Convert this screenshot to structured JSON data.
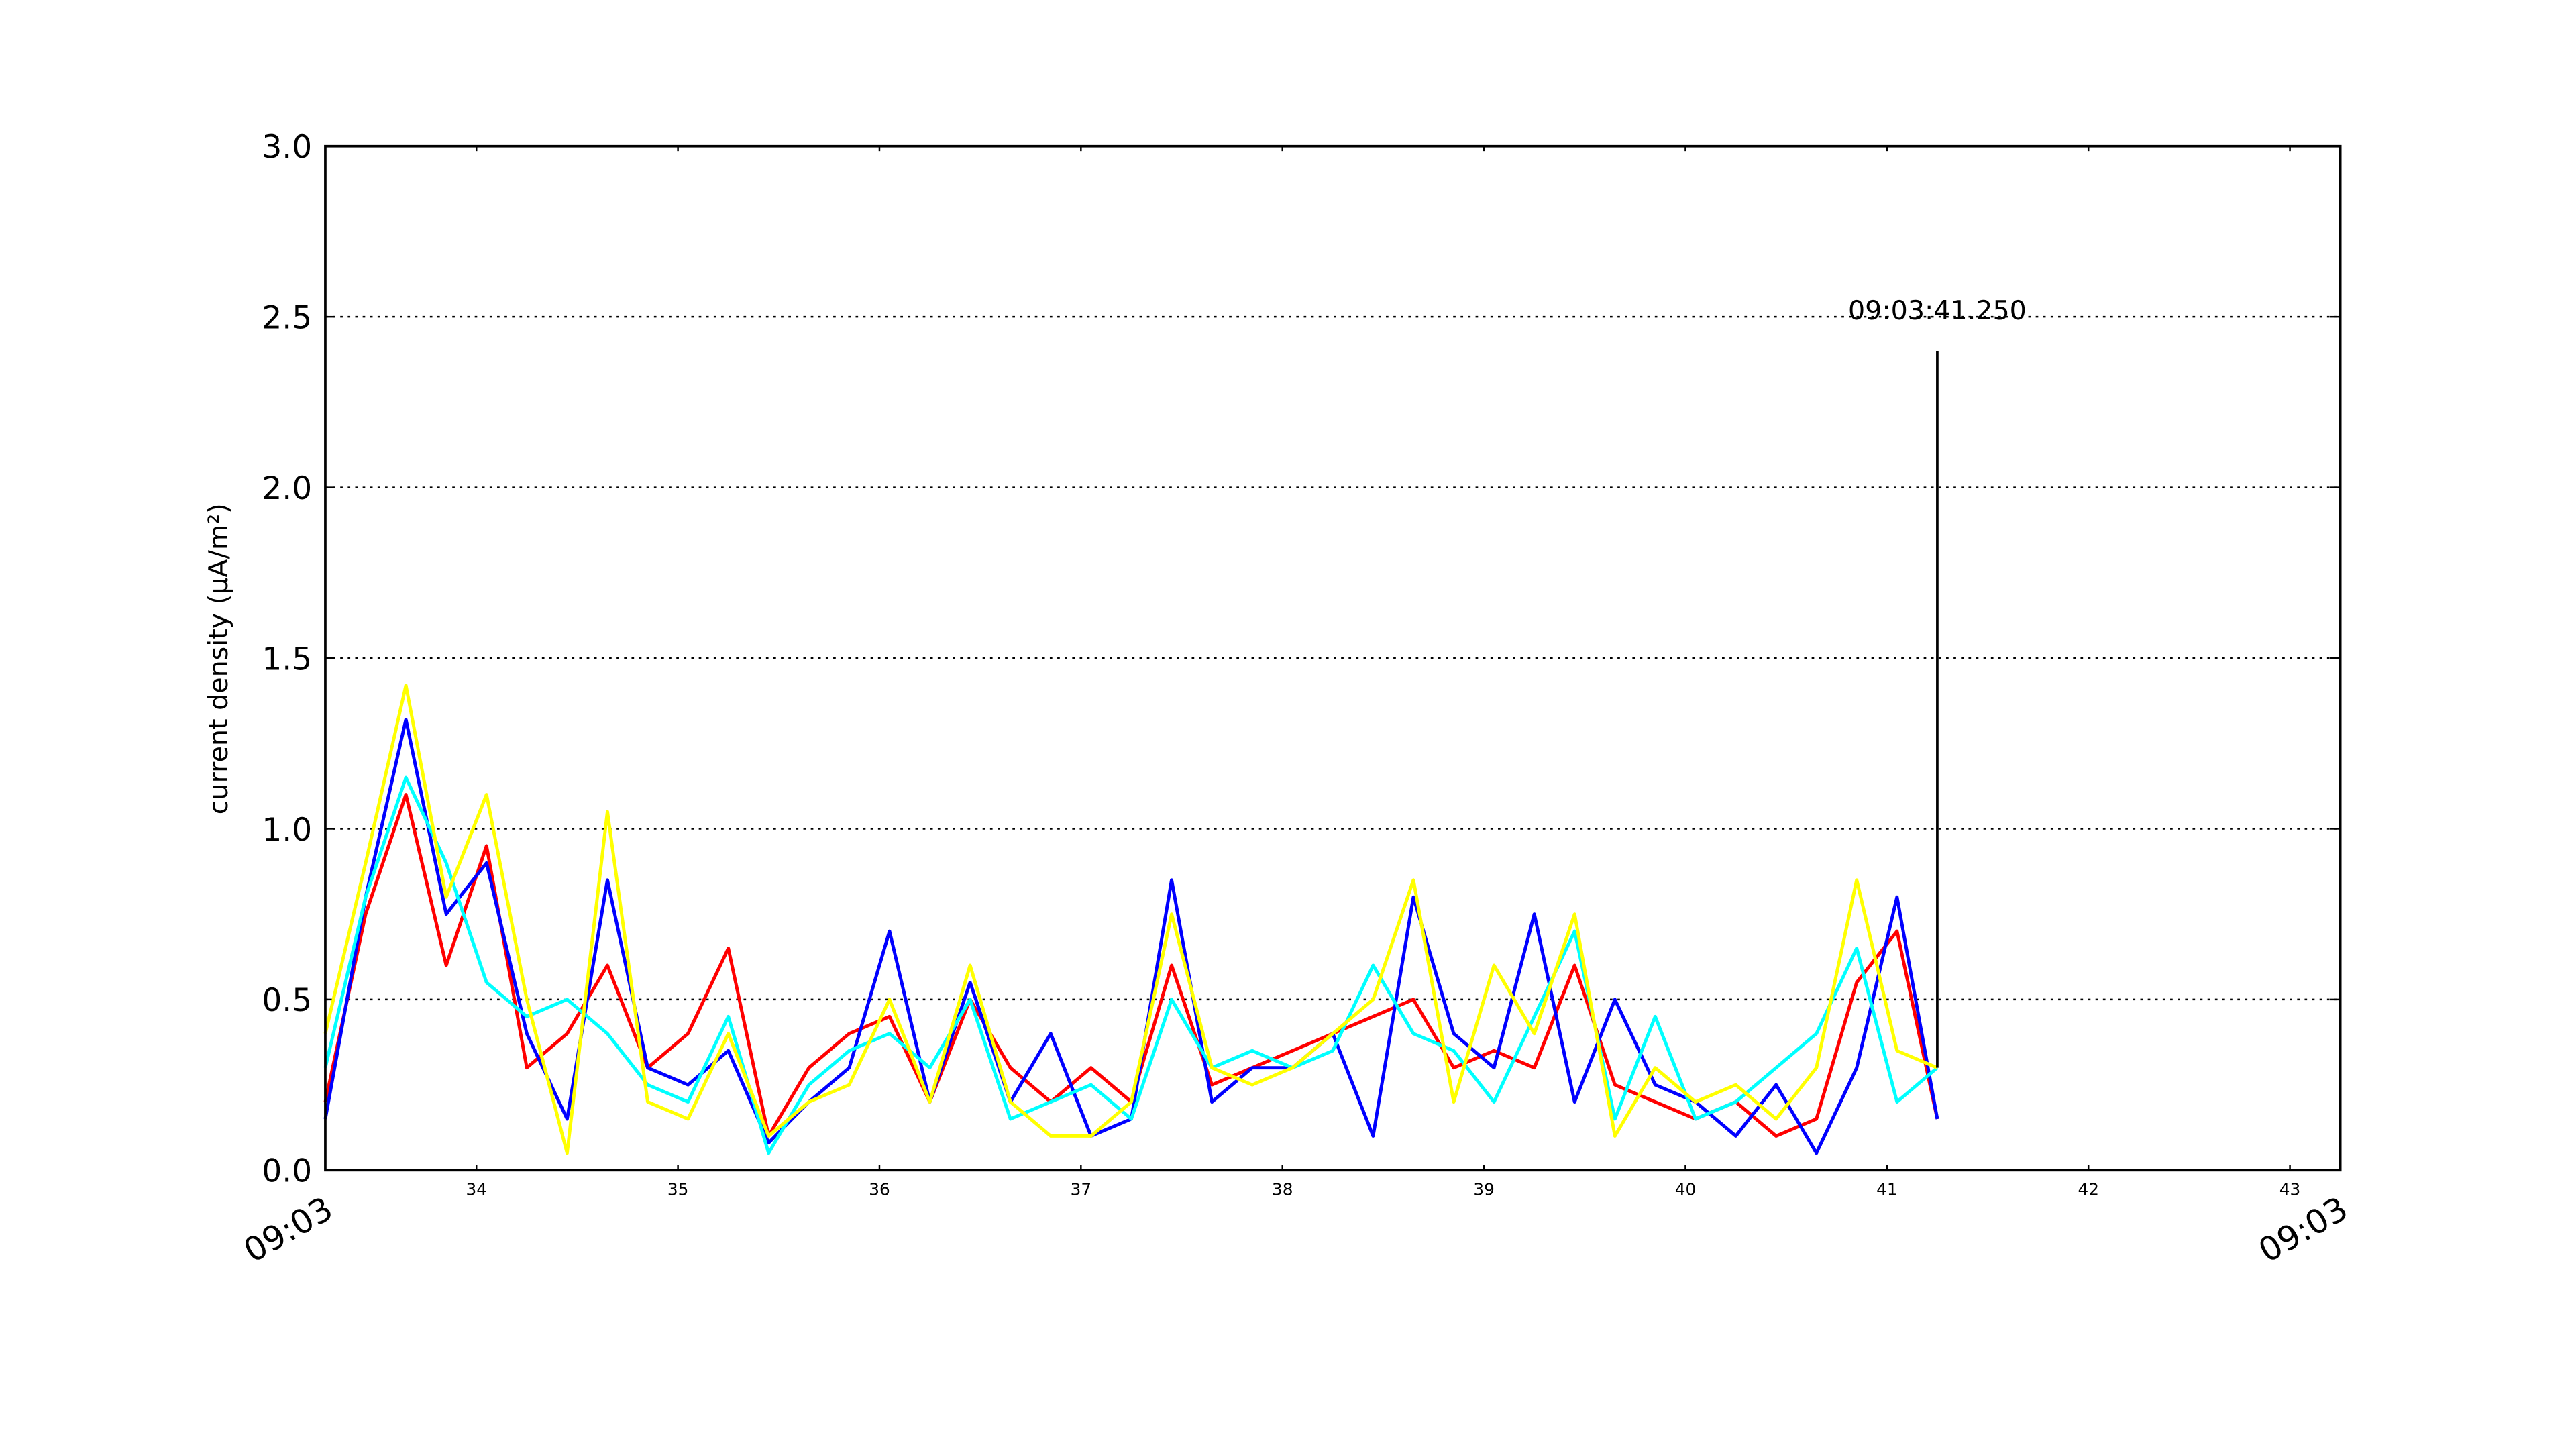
{
  "chart_data": {
    "type": "line",
    "y_label": "current density (μA/m²)",
    "x": [
      33.25,
      33.45,
      33.65,
      33.85,
      34.05,
      34.25,
      34.45,
      34.65,
      34.85,
      35.05,
      35.25,
      35.45,
      35.65,
      35.85,
      36.05,
      36.25,
      36.45,
      36.65,
      36.85,
      37.05,
      37.25,
      37.45,
      37.65,
      37.85,
      38.05,
      38.25,
      38.45,
      38.65,
      38.85,
      39.05,
      39.25,
      39.45,
      39.65,
      39.85,
      40.05,
      40.25,
      40.45,
      40.65,
      40.85,
      41.05,
      41.25
    ],
    "series": [
      {
        "color": "#ff0000",
        "values": [
          0.2,
          0.75,
          1.1,
          0.6,
          0.95,
          0.3,
          0.4,
          0.6,
          0.3,
          0.4,
          0.65,
          0.1,
          0.3,
          0.4,
          0.45,
          0.2,
          0.5,
          0.3,
          0.2,
          0.3,
          0.2,
          0.6,
          0.25,
          0.3,
          0.35,
          0.4,
          0.45,
          0.5,
          0.3,
          0.35,
          0.3,
          0.6,
          0.25,
          0.2,
          0.15,
          0.2,
          0.1,
          0.15,
          0.55,
          0.7,
          0.15
        ]
      },
      {
        "color": "#0000ff",
        "values": [
          0.15,
          0.8,
          1.32,
          0.75,
          0.9,
          0.4,
          0.15,
          0.85,
          0.3,
          0.25,
          0.35,
          0.08,
          0.2,
          0.3,
          0.7,
          0.2,
          0.55,
          0.2,
          0.4,
          0.1,
          0.15,
          0.85,
          0.2,
          0.3,
          0.3,
          0.4,
          0.1,
          0.8,
          0.4,
          0.3,
          0.75,
          0.2,
          0.5,
          0.25,
          0.2,
          0.1,
          0.25,
          0.05,
          0.3,
          0.8,
          0.15
        ]
      },
      {
        "color": "#00ffff",
        "values": [
          0.3,
          0.8,
          1.15,
          0.9,
          0.55,
          0.45,
          0.5,
          0.4,
          0.25,
          0.2,
          0.45,
          0.05,
          0.25,
          0.35,
          0.4,
          0.3,
          0.5,
          0.15,
          0.2,
          0.25,
          0.15,
          0.5,
          0.3,
          0.35,
          0.3,
          0.35,
          0.6,
          0.4,
          0.35,
          0.2,
          0.45,
          0.7,
          0.15,
          0.45,
          0.15,
          0.2,
          0.3,
          0.4,
          0.65,
          0.2,
          0.3
        ]
      },
      {
        "color": "#ffff00",
        "values": [
          0.4,
          0.9,
          1.42,
          0.8,
          1.1,
          0.5,
          0.05,
          1.05,
          0.2,
          0.15,
          0.4,
          0.1,
          0.2,
          0.25,
          0.5,
          0.2,
          0.6,
          0.2,
          0.1,
          0.1,
          0.2,
          0.75,
          0.3,
          0.25,
          0.3,
          0.4,
          0.5,
          0.85,
          0.2,
          0.6,
          0.4,
          0.75,
          0.1,
          0.3,
          0.2,
          0.25,
          0.15,
          0.3,
          0.85,
          0.35,
          0.3
        ]
      }
    ],
    "xlim": [
      33.25,
      43.25
    ],
    "xticks": [
      34,
      35,
      36,
      37,
      38,
      39,
      40,
      41,
      42,
      43
    ],
    "major_xticks": [
      {
        "value": 33.25,
        "label": "09:03"
      },
      {
        "value": 43.25,
        "label": "09:03"
      }
    ],
    "ylim": [
      0,
      3
    ],
    "yticks": [
      {
        "value": 0,
        "label": "0.0"
      },
      {
        "value": 0.5,
        "label": "0.5"
      },
      {
        "value": 1,
        "label": "1.0"
      },
      {
        "value": 1.5,
        "label": "1.5"
      },
      {
        "value": 2,
        "label": "2.0"
      },
      {
        "value": 2.5,
        "label": "2.5"
      },
      {
        "value": 3,
        "label": "3.0"
      }
    ],
    "grid": true,
    "annotation": {
      "text": "09:03:41.250",
      "x": 41.25,
      "y": [
        0.3,
        2.4
      ]
    }
  }
}
